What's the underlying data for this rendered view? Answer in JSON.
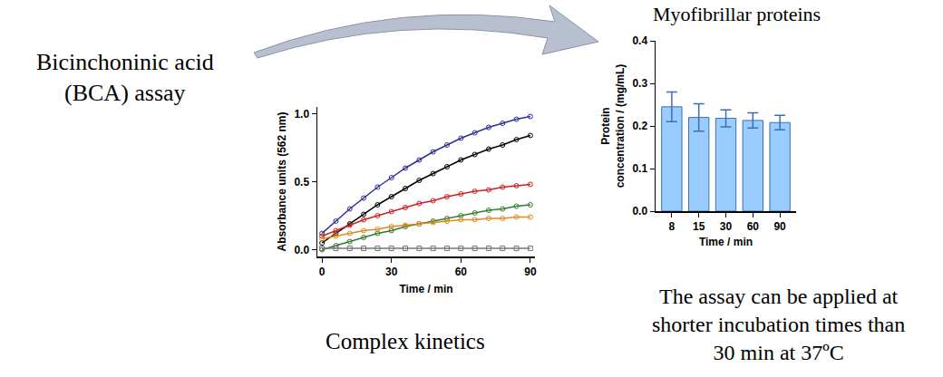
{
  "chart_data": [
    {
      "type": "line",
      "x_label": "Time / min",
      "y_label": "Absorbance units (562 nm)",
      "annotations": [
        "Bicinchoninic acid\n(BCA) assay",
        "Complex kinetics"
      ],
      "x": [
        0,
        6,
        12,
        18,
        24,
        30,
        36,
        42,
        48,
        54,
        60,
        66,
        72,
        78,
        84,
        90
      ],
      "series": [
        {
          "color": "#2e3192",
          "marker": "circle-open",
          "line_style": "solid",
          "values": [
            0.12,
            0.21,
            0.3,
            0.38,
            0.46,
            0.53,
            0.6,
            0.66,
            0.72,
            0.77,
            0.82,
            0.86,
            0.9,
            0.93,
            0.96,
            0.98
          ]
        },
        {
          "color": "#000000",
          "marker": "circle-open",
          "line_style": "solid",
          "values": [
            0.05,
            0.12,
            0.19,
            0.26,
            0.33,
            0.39,
            0.45,
            0.51,
            0.56,
            0.61,
            0.66,
            0.7,
            0.74,
            0.77,
            0.81,
            0.84
          ]
        },
        {
          "color": "#cc2222",
          "marker": "circle-open",
          "line_style": "solid",
          "values": [
            0.1,
            0.14,
            0.18,
            0.22,
            0.25,
            0.28,
            0.31,
            0.34,
            0.36,
            0.39,
            0.41,
            0.43,
            0.44,
            0.46,
            0.47,
            0.48
          ]
        },
        {
          "color": "#2e7d32",
          "marker": "circle-open",
          "line_style": "solid",
          "values": [
            0.0,
            0.03,
            0.06,
            0.09,
            0.12,
            0.14,
            0.17,
            0.19,
            0.21,
            0.23,
            0.25,
            0.27,
            0.29,
            0.3,
            0.32,
            0.33
          ]
        },
        {
          "color": "#e08a1e",
          "marker": "circle-open",
          "line_style": "solid",
          "values": [
            0.08,
            0.1,
            0.12,
            0.14,
            0.15,
            0.17,
            0.18,
            0.19,
            0.2,
            0.21,
            0.22,
            0.22,
            0.23,
            0.23,
            0.24,
            0.24
          ]
        },
        {
          "color": "#777777",
          "marker": "square-open",
          "line_style": "solid",
          "values": [
            0.01,
            0.01,
            0.01,
            0.01,
            0.01,
            0.01,
            0.01,
            0.01,
            0.01,
            0.01,
            0.01,
            0.01,
            0.01,
            0.01,
            0.01,
            0.01
          ]
        }
      ],
      "xlim": [
        -2,
        92
      ],
      "xticks": [
        0,
        30,
        60,
        90
      ],
      "ylim": [
        -0.05,
        1.05
      ],
      "yticks": [
        {
          "value": 0,
          "label": "0.0"
        },
        {
          "value": 0.5,
          "label": "0.5"
        },
        {
          "value": 1,
          "label": "1.0"
        }
      ],
      "grid": false
    },
    {
      "type": "bar",
      "title": "Myofibrillar proteins",
      "x_label": "Time / min",
      "y_label": "Protein\nconcentration / (mg/mL)",
      "annotations": [
        "The assay can be applied at\nshorter incubation times than\n30 min at 37ºC"
      ],
      "categories": [
        "8",
        "15",
        "30",
        "60",
        "90"
      ],
      "values": [
        0.245,
        0.22,
        0.218,
        0.213,
        0.208
      ],
      "errors": [
        0.035,
        0.032,
        0.02,
        0.018,
        0.017
      ],
      "color": "#99ccff",
      "ylim": [
        0,
        0.4
      ],
      "yticks": [
        {
          "value": 0,
          "label": "0.0"
        },
        {
          "value": 0.1,
          "label": "0.1"
        },
        {
          "value": 0.2,
          "label": "0.2"
        },
        {
          "value": 0.3,
          "label": "0.3"
        },
        {
          "value": 0.4,
          "label": "0.4"
        }
      ],
      "grid": false
    }
  ]
}
